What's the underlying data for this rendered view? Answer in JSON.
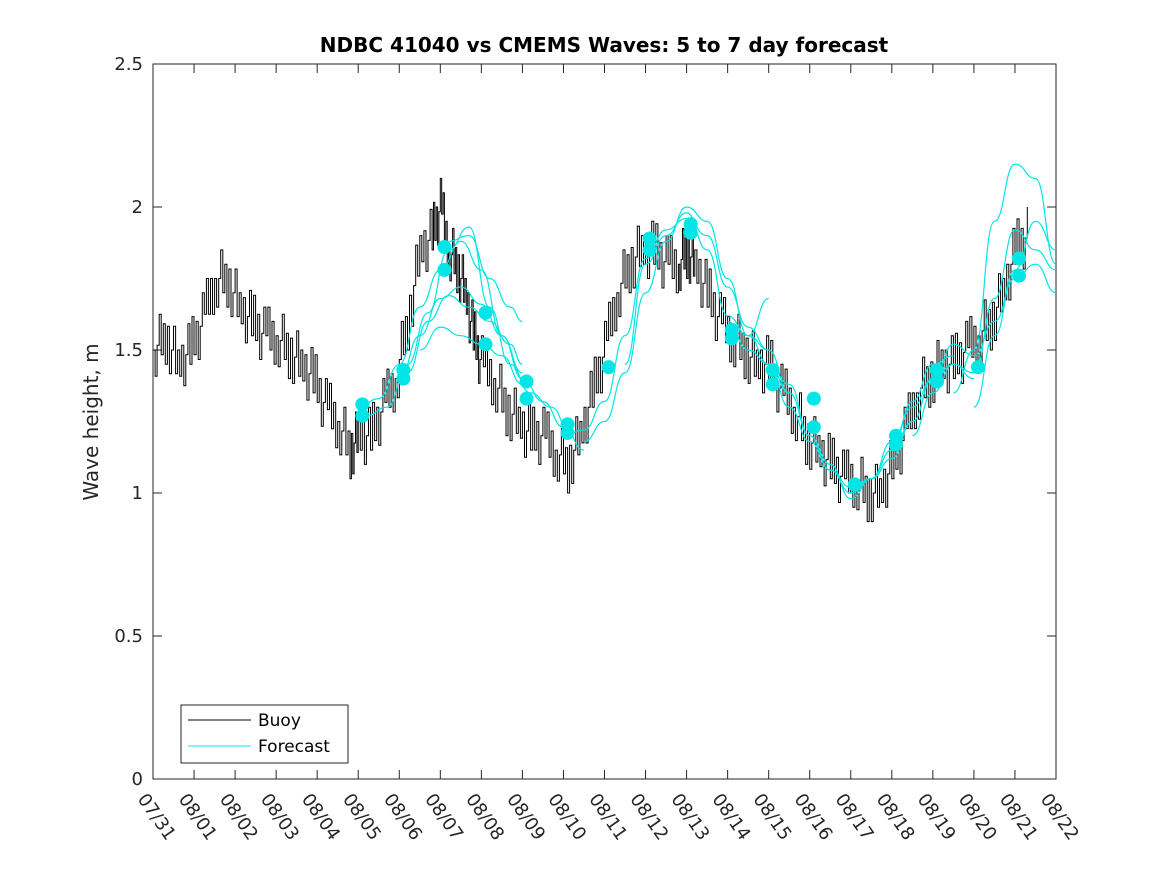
{
  "chart_data": {
    "type": "line",
    "title": "NDBC 41040 vs CMEMS Waves: 5 to 7 day forecast",
    "xlabel": "",
    "ylabel": "Wave height, m",
    "ylim": [
      0,
      2.5
    ],
    "yticks": [
      0,
      0.5,
      1,
      1.5,
      2,
      2.5
    ],
    "ytick_labels": [
      "0",
      "0.5",
      "1",
      "1.5",
      "2",
      "2.5"
    ],
    "xlim_days": [
      0,
      22
    ],
    "xtick_labels": [
      "07/31",
      "08/01",
      "08/02",
      "08/03",
      "08/04",
      "08/05",
      "08/06",
      "08/07",
      "08/08",
      "08/09",
      "08/10",
      "08/11",
      "08/12",
      "08/13",
      "08/14",
      "08/15",
      "08/16",
      "08/17",
      "08/18",
      "08/19",
      "08/20",
      "08/21",
      "08/22"
    ],
    "grid": false,
    "legend": {
      "position": "bottom-left",
      "entries": [
        {
          "label": "Buoy",
          "color": "#000000"
        },
        {
          "label": "Forecast",
          "color": "#00e5e5"
        }
      ]
    },
    "colors": {
      "buoy": "#000000",
      "forecast": "#00e5e5",
      "marker": "#00e5e5"
    },
    "series": [
      {
        "name": "Buoy",
        "x_days": [
          0.0,
          0.3,
          0.6,
          0.9,
          1.2,
          1.5,
          1.8,
          2.1,
          2.4,
          2.7,
          3.0,
          3.3,
          3.6,
          3.9,
          4.2,
          4.5,
          4.8,
          5.0,
          5.3,
          5.6,
          5.9,
          6.2,
          6.5,
          6.8,
          7.0,
          7.2,
          7.4,
          7.6,
          7.8,
          8.0,
          8.3,
          8.6,
          8.9,
          9.2,
          9.5,
          9.8,
          10.1,
          10.4,
          10.7,
          11.0,
          11.3,
          11.6,
          11.9,
          12.2,
          12.5,
          12.8,
          13.0,
          13.2,
          13.5,
          13.8,
          14.1,
          14.4,
          14.7,
          15.0,
          15.3,
          15.6,
          15.9,
          16.2,
          16.5,
          16.8,
          17.1,
          17.4,
          17.7,
          18.0,
          18.3,
          18.6,
          18.9,
          19.2,
          19.5,
          19.8,
          20.1,
          20.4,
          20.7,
          21.0,
          21.3
        ],
        "y": [
          1.5,
          1.55,
          1.45,
          1.5,
          1.6,
          1.75,
          1.75,
          1.65,
          1.6,
          1.55,
          1.55,
          1.5,
          1.45,
          1.4,
          1.3,
          1.25,
          1.15,
          1.2,
          1.2,
          1.3,
          1.4,
          1.6,
          1.85,
          1.9,
          2.0,
          1.85,
          1.8,
          1.7,
          1.55,
          1.45,
          1.4,
          1.3,
          1.25,
          1.2,
          1.2,
          1.15,
          1.1,
          1.2,
          1.35,
          1.5,
          1.7,
          1.8,
          1.85,
          1.85,
          1.8,
          1.8,
          1.85,
          1.8,
          1.7,
          1.6,
          1.55,
          1.5,
          1.45,
          1.45,
          1.35,
          1.3,
          1.2,
          1.15,
          1.1,
          1.05,
          1.05,
          1.0,
          1.0,
          1.1,
          1.2,
          1.35,
          1.4,
          1.45,
          1.45,
          1.5,
          1.55,
          1.6,
          1.7,
          1.85,
          1.9
        ]
      },
      {
        "name": "Forecast",
        "segments": [
          {
            "x_days": [
              5.0,
              5.5,
              6.0,
              6.5,
              7.0,
              7.5,
              8.0,
              8.5,
              9.0,
              9.5,
              10.0,
              10.5
            ],
            "y": [
              1.3,
              1.33,
              1.45,
              1.65,
              1.78,
              1.88,
              1.78,
              1.55,
              1.4,
              1.32,
              1.23,
              1.15
            ]
          },
          {
            "x_days": [
              5.2,
              5.7,
              6.2,
              6.7,
              7.2,
              7.7,
              8.2,
              8.7,
              9.2,
              9.7,
              10.2
            ],
            "y": [
              1.27,
              1.3,
              1.45,
              1.63,
              1.85,
              1.93,
              1.65,
              1.45,
              1.35,
              1.3,
              1.2
            ]
          },
          {
            "x_days": [
              6.0,
              6.5,
              7.0,
              7.5,
              8.0,
              8.5,
              9.0
            ],
            "y": [
              1.4,
              1.55,
              1.68,
              1.72,
              1.66,
              1.55,
              1.42
            ]
          },
          {
            "x_days": [
              6.2,
              6.7,
              7.2,
              7.7,
              8.2,
              8.7,
              9.0
            ],
            "y": [
              1.42,
              1.6,
              1.69,
              1.65,
              1.6,
              1.52,
              1.45
            ]
          },
          {
            "x_days": [
              6.5,
              7.0,
              7.5,
              8.0,
              8.5,
              9.0
            ],
            "y": [
              1.5,
              1.58,
              1.55,
              1.52,
              1.48,
              1.38
            ]
          },
          {
            "x_days": [
              7.2,
              7.7,
              8.2,
              8.7,
              9.0
            ],
            "y": [
              1.88,
              1.9,
              1.75,
              1.65,
              1.6
            ]
          },
          {
            "x_days": [
              10.0,
              10.5,
              11.0,
              11.5,
              12.0,
              12.5,
              13.0,
              13.5,
              14.0,
              14.5,
              15.0
            ],
            "y": [
              1.2,
              1.22,
              1.32,
              1.55,
              1.82,
              1.92,
              1.96,
              1.9,
              1.72,
              1.58,
              1.5
            ]
          },
          {
            "x_days": [
              10.5,
              11.0,
              11.5,
              12.0,
              12.5,
              13.0,
              13.5,
              14.0,
              14.5,
              15.0,
              15.5
            ],
            "y": [
              1.18,
              1.25,
              1.42,
              1.7,
              1.88,
              2.0,
              1.95,
              1.75,
              1.55,
              1.45,
              1.35
            ]
          },
          {
            "x_days": [
              11.5,
              12.0,
              12.5,
              13.0,
              13.5,
              14.0,
              14.5,
              15.0
            ],
            "y": [
              1.45,
              1.8,
              1.9,
              1.98,
              1.85,
              1.62,
              1.55,
              1.68
            ]
          },
          {
            "x_days": [
              14.0,
              14.5,
              15.0,
              15.5,
              16.0,
              16.5,
              17.0,
              17.5,
              18.0,
              18.5,
              19.0
            ],
            "y": [
              1.6,
              1.5,
              1.45,
              1.3,
              1.18,
              1.08,
              1.0,
              1.05,
              1.12,
              1.25,
              1.4
            ]
          },
          {
            "x_days": [
              14.5,
              15.0,
              15.5,
              16.0,
              16.5,
              17.0,
              17.5,
              18.0,
              18.5,
              19.0,
              19.5
            ],
            "y": [
              1.55,
              1.5,
              1.35,
              1.2,
              1.1,
              0.98,
              1.05,
              1.15,
              1.32,
              1.45,
              1.48
            ]
          },
          {
            "x_days": [
              15.0,
              15.5,
              16.0,
              16.5,
              17.0,
              17.5,
              18.0,
              18.5,
              19.0,
              19.5,
              20.0
            ],
            "y": [
              1.45,
              1.38,
              1.2,
              1.08,
              1.02,
              1.05,
              1.18,
              1.3,
              1.4,
              1.45,
              1.4
            ]
          },
          {
            "x_days": [
              18.0,
              18.5,
              19.0,
              19.5,
              20.0,
              20.5,
              21.0,
              21.5,
              22.0
            ],
            "y": [
              1.15,
              1.25,
              1.4,
              1.52,
              1.48,
              1.6,
              1.75,
              1.8,
              1.7
            ]
          },
          {
            "x_days": [
              18.5,
              19.0,
              19.5,
              20.0,
              20.5,
              21.0,
              21.5,
              22.0
            ],
            "y": [
              1.2,
              1.35,
              1.45,
              1.42,
              1.68,
              1.92,
              1.85,
              1.78
            ]
          },
          {
            "x_days": [
              19.5,
              20.0,
              20.5,
              21.0,
              21.5,
              22.0
            ],
            "y": [
              1.35,
              1.5,
              1.95,
              2.15,
              2.1,
              1.8
            ]
          },
          {
            "x_days": [
              20.0,
              20.5,
              21.0,
              21.5,
              22.0
            ],
            "y": [
              1.3,
              1.55,
              1.78,
              1.95,
              1.85
            ]
          }
        ]
      }
    ],
    "markers": {
      "name": "Forecast points",
      "x_days": [
        5.1,
        5.1,
        6.1,
        6.1,
        7.1,
        7.1,
        8.1,
        8.1,
        9.1,
        9.1,
        10.1,
        10.1,
        11.1,
        12.1,
        12.1,
        13.1,
        13.1,
        14.1,
        14.1,
        15.1,
        15.1,
        16.1,
        16.1,
        17.1,
        18.1,
        18.1,
        19.1,
        19.1,
        20.1,
        21.1,
        21.1
      ],
      "y": [
        1.31,
        1.27,
        1.43,
        1.4,
        1.86,
        1.78,
        1.63,
        1.52,
        1.39,
        1.33,
        1.24,
        1.21,
        1.44,
        1.89,
        1.85,
        1.94,
        1.91,
        1.57,
        1.54,
        1.43,
        1.38,
        1.33,
        1.23,
        1.03,
        1.2,
        1.17,
        1.43,
        1.39,
        1.44,
        1.82,
        1.76
      ]
    }
  }
}
